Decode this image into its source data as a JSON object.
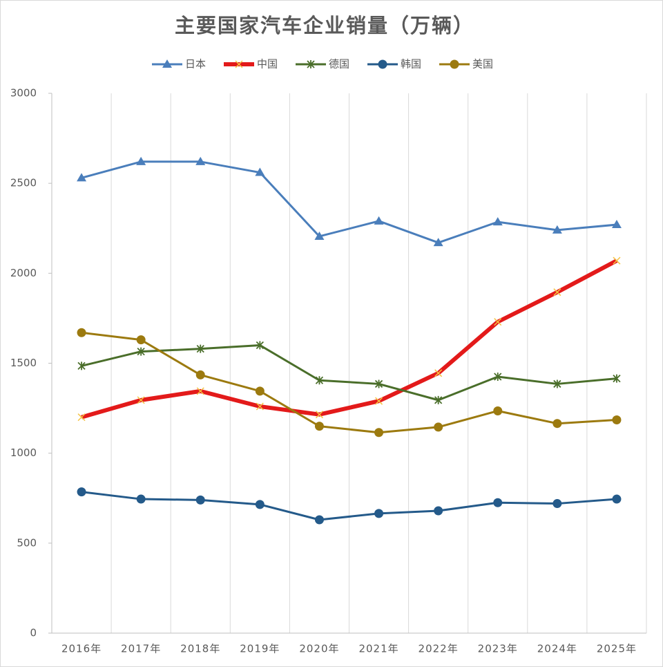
{
  "chart_data": {
    "type": "line",
    "title": "主要国家汽车企业销量（万辆）",
    "categories": [
      "2016年",
      "2017年",
      "2018年",
      "2019年",
      "2020年",
      "2021年",
      "2022年",
      "2023年",
      "2024年",
      "2025年"
    ],
    "series": [
      {
        "name": "日本",
        "color": "#4a7ebb",
        "marker": "triangle",
        "width": 3,
        "values": [
          2530,
          2620,
          2620,
          2560,
          2205,
          2290,
          2170,
          2285,
          2240,
          2270
        ]
      },
      {
        "name": "中国",
        "color": "#e31a1a",
        "marker": "x",
        "marker_color": "#f5c242",
        "width": 6,
        "values": [
          1200,
          1295,
          1345,
          1260,
          1215,
          1290,
          1445,
          1730,
          1895,
          2070
        ]
      },
      {
        "name": "德国",
        "color": "#4a6e2a",
        "marker": "star",
        "width": 3,
        "values": [
          1485,
          1565,
          1580,
          1600,
          1405,
          1385,
          1295,
          1425,
          1385,
          1415
        ]
      },
      {
        "name": "韩国",
        "color": "#245a8a",
        "marker": "circle",
        "width": 3,
        "values": [
          785,
          745,
          740,
          715,
          630,
          665,
          680,
          725,
          720,
          745
        ]
      },
      {
        "name": "美国",
        "color": "#9c7a0f",
        "marker": "circle",
        "width": 3,
        "values": [
          1670,
          1630,
          1435,
          1345,
          1150,
          1115,
          1145,
          1235,
          1165,
          1185
        ]
      }
    ],
    "ylim": [
      0,
      3000
    ],
    "yticks": [
      0,
      500,
      1000,
      1500,
      2000,
      2500,
      3000
    ],
    "grid": "x",
    "legend": "top"
  }
}
